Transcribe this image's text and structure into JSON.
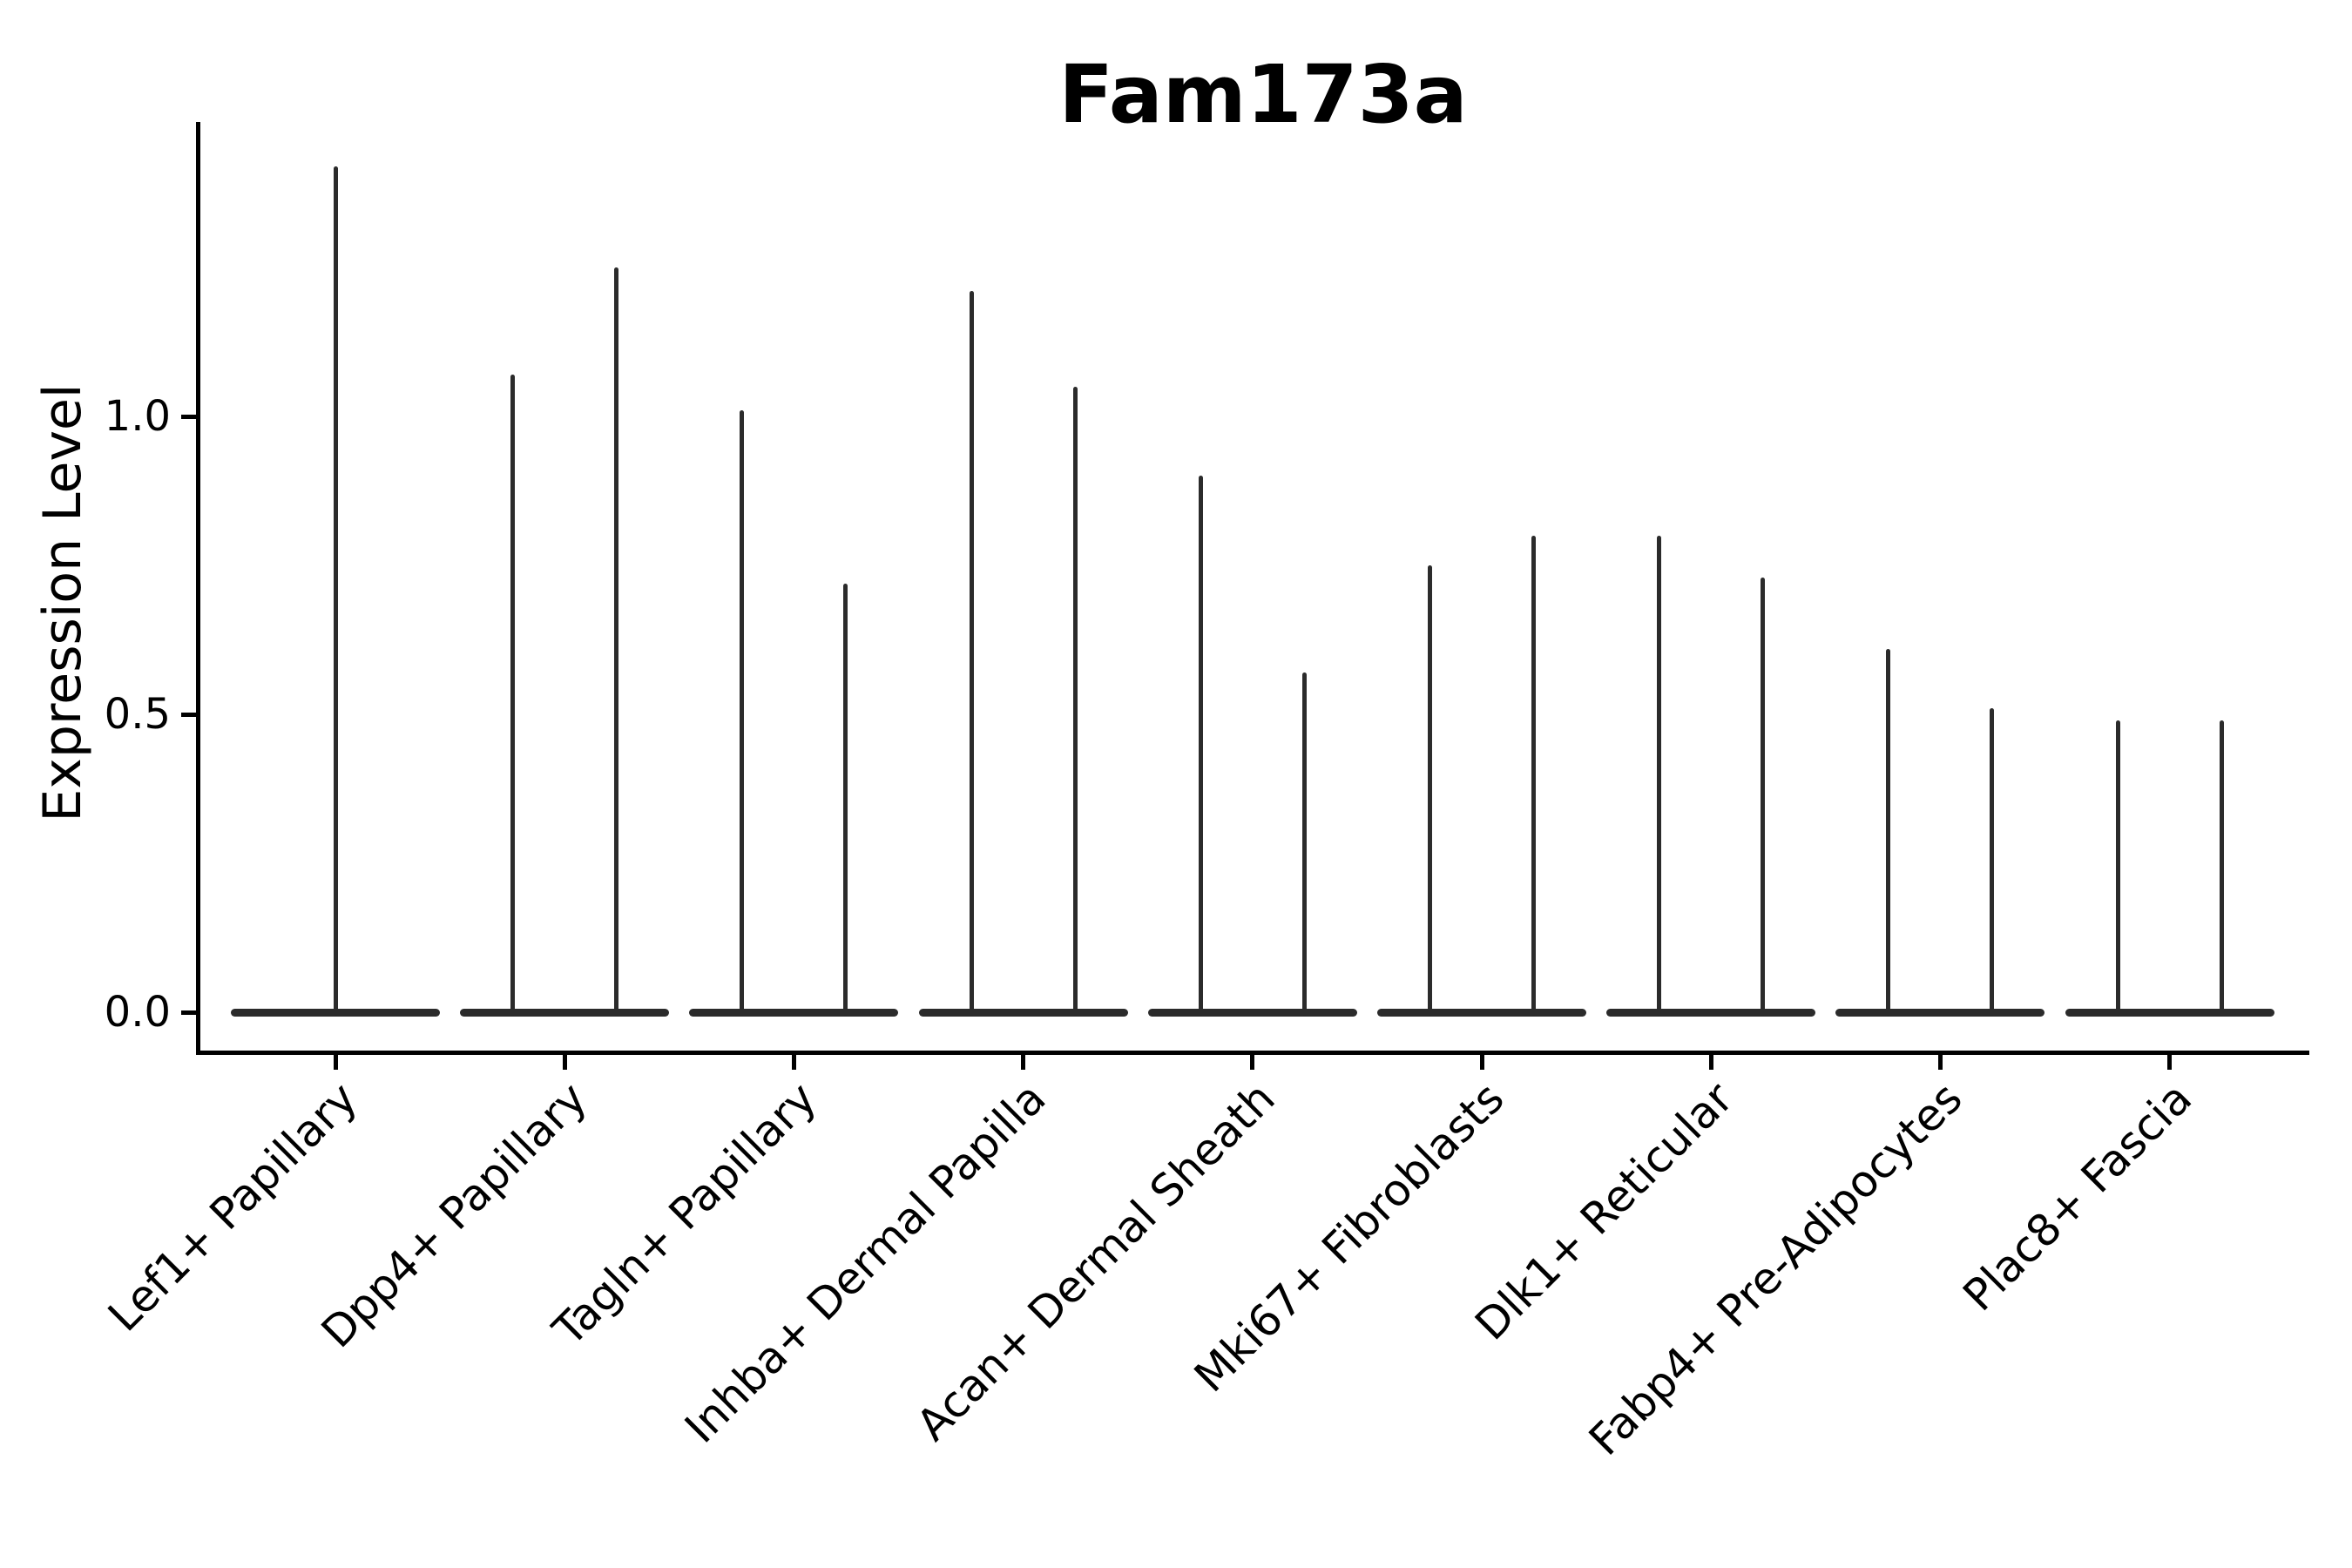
{
  "chart_data": {
    "type": "violin",
    "title": "Fam173a",
    "xlabel": "",
    "ylabel": "Expression Level",
    "yticks": [
      0.0,
      0.5,
      1.0
    ],
    "ylim": [
      -0.07,
      1.49
    ],
    "grid": false,
    "legend": null,
    "background": "#ffffff",
    "violin_color": "#2b2b2b",
    "axis_color": "#000000",
    "categories": [
      "Lef1+ Papillary",
      "Dpp4+ Papillary",
      "Tagln+ Papillary",
      "Inhba+ Dermal Papilla",
      "Acan+ Dermal Sheath",
      "Mki67+ Fibroblasts",
      "Dlk1+ Reticular",
      "Fabp4+ Pre-Adipocytes",
      "Plac8+ Fascia"
    ],
    "violins": [
      {
        "category": "Lef1+ Papillary",
        "spike_max_values": [
          1.42
        ]
      },
      {
        "category": "Dpp4+ Papillary",
        "spike_max_values": [
          1.07,
          1.25
        ]
      },
      {
        "category": "Tagln+ Papillary",
        "spike_max_values": [
          1.01,
          0.72
        ]
      },
      {
        "category": "Inhba+ Dermal Papilla",
        "spike_max_values": [
          1.21,
          1.05
        ]
      },
      {
        "category": "Acan+ Dermal Sheath",
        "spike_max_values": [
          0.9,
          0.57
        ]
      },
      {
        "category": "Mki67+ Fibroblasts",
        "spike_max_values": [
          0.75,
          0.8
        ]
      },
      {
        "category": "Dlk1+ Reticular",
        "spike_max_values": [
          0.8,
          0.73
        ]
      },
      {
        "category": "Fabp4+ Pre-Adipocytes",
        "spike_max_values": [
          0.61,
          0.51
        ]
      },
      {
        "category": "Plac8+ Fascia",
        "spike_max_values": [
          0.49,
          0.49
        ]
      }
    ]
  }
}
